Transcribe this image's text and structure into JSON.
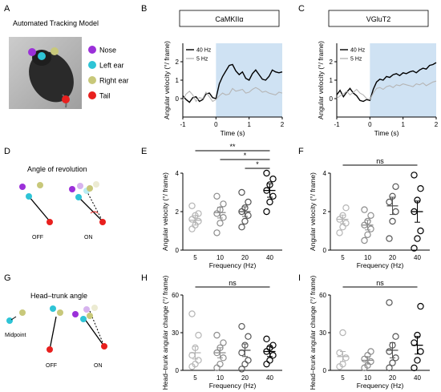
{
  "panels": {
    "A": "A",
    "B": "B",
    "C": "C",
    "D": "D",
    "E": "E",
    "F": "F",
    "G": "G",
    "H": "H",
    "I": "I"
  },
  "panelA": {
    "title": "Automated Tracking Model",
    "legend": [
      {
        "label": "Nose",
        "color": "#9b30d9"
      },
      {
        "label": "Left ear",
        "color": "#2ec4d6"
      },
      {
        "label": "Right ear",
        "color": "#c8c87a"
      },
      {
        "label": "Tail",
        "color": "#e8201e"
      }
    ]
  },
  "panelD": {
    "title": "Angle of revolution",
    "off": "OFF",
    "on": "ON"
  },
  "panelG": {
    "title": "Head–trunk angle",
    "midpoint": "Midpoint",
    "off": "OFF",
    "on": "ON"
  },
  "colors": {
    "shade": "#cfe2f3",
    "light_gray": "#b5b5b5",
    "black": "#000000"
  },
  "chart_data": [
    {
      "id": "B",
      "type": "line",
      "title": "CaMKIIα",
      "xlabel": "Time (s)",
      "ylabel": "Angular velocity (°/ frame)",
      "xlim": [
        -1,
        2
      ],
      "xticks": [
        -1,
        0,
        1,
        2
      ],
      "ylim": [
        -1,
        3
      ],
      "yticks": [
        0,
        1,
        2
      ],
      "shade": [
        0,
        2
      ],
      "legend": [
        "40 Hz",
        "5 Hz"
      ],
      "series": [
        {
          "name": "40 Hz",
          "color": "#000000",
          "x": [
            -1,
            -0.9,
            -0.8,
            -0.7,
            -0.6,
            -0.5,
            -0.4,
            -0.3,
            -0.2,
            -0.1,
            0,
            0.1,
            0.2,
            0.3,
            0.4,
            0.5,
            0.6,
            0.7,
            0.8,
            0.9,
            1.0,
            1.1,
            1.2,
            1.3,
            1.4,
            1.5,
            1.6,
            1.7,
            1.8,
            1.9,
            2.0
          ],
          "y": [
            0.15,
            -0.05,
            -0.2,
            0.05,
            0.1,
            -0.15,
            -0.05,
            0.25,
            0.3,
            0.05,
            0.0,
            0.8,
            1.2,
            1.5,
            1.8,
            1.85,
            1.5,
            1.3,
            1.45,
            1.1,
            1.0,
            1.35,
            1.55,
            1.3,
            1.05,
            1.0,
            1.2,
            1.55,
            1.45,
            1.4,
            1.45
          ]
        },
        {
          "name": "5 Hz",
          "color": "#b5b5b5",
          "x": [
            -1,
            -0.9,
            -0.8,
            -0.7,
            -0.6,
            -0.5,
            -0.4,
            -0.3,
            -0.2,
            -0.1,
            0,
            0.1,
            0.2,
            0.3,
            0.4,
            0.5,
            0.6,
            0.7,
            0.8,
            0.9,
            1.0,
            1.1,
            1.2,
            1.3,
            1.4,
            1.5,
            1.6,
            1.7,
            1.8,
            1.9,
            2.0
          ],
          "y": [
            -0.1,
            0.25,
            0.4,
            0.2,
            -0.15,
            0.05,
            0.0,
            0.35,
            0.1,
            -0.15,
            -0.05,
            0.15,
            0.3,
            0.2,
            0.25,
            0.55,
            0.4,
            0.45,
            0.5,
            0.3,
            0.35,
            0.5,
            0.6,
            0.5,
            0.35,
            0.4,
            0.3,
            0.25,
            0.2,
            0.35,
            0.3
          ]
        }
      ]
    },
    {
      "id": "C",
      "type": "line",
      "title": "VGluT2",
      "xlabel": "Time (s)",
      "ylabel": "Angular velocity (°/ frame)",
      "xlim": [
        -1,
        2
      ],
      "xticks": [
        -1,
        0,
        1,
        2
      ],
      "ylim": [
        -1,
        3
      ],
      "yticks": [
        0,
        1,
        2
      ],
      "shade": [
        0,
        2
      ],
      "legend": [
        "40 Hz",
        "5 Hz"
      ],
      "series": [
        {
          "name": "40 Hz",
          "color": "#000000",
          "x": [
            -1,
            -0.9,
            -0.8,
            -0.7,
            -0.6,
            -0.5,
            -0.4,
            -0.3,
            -0.2,
            -0.1,
            0,
            0.1,
            0.2,
            0.3,
            0.4,
            0.5,
            0.6,
            0.7,
            0.8,
            0.9,
            1.0,
            1.1,
            1.2,
            1.3,
            1.4,
            1.5,
            1.6,
            1.7,
            1.8,
            1.9,
            2.0
          ],
          "y": [
            0.2,
            0.45,
            0.1,
            0.35,
            0.55,
            0.3,
            0.15,
            -0.1,
            -0.15,
            -0.05,
            -0.1,
            0.5,
            0.9,
            1.05,
            1.0,
            1.2,
            1.15,
            1.3,
            1.35,
            1.25,
            1.4,
            1.35,
            1.45,
            1.5,
            1.4,
            1.55,
            1.65,
            1.6,
            1.8,
            1.85,
            1.95
          ]
        },
        {
          "name": "5 Hz",
          "color": "#b5b5b5",
          "x": [
            -1,
            -0.9,
            -0.8,
            -0.7,
            -0.6,
            -0.5,
            -0.4,
            -0.3,
            -0.2,
            -0.1,
            0,
            0.1,
            0.2,
            0.3,
            0.4,
            0.5,
            0.6,
            0.7,
            0.8,
            0.9,
            1.0,
            1.1,
            1.2,
            1.3,
            1.4,
            1.5,
            1.6,
            1.7,
            1.8,
            1.9,
            2.0
          ],
          "y": [
            0.0,
            0.15,
            0.25,
            0.4,
            0.2,
            0.35,
            0.5,
            0.3,
            0.2,
            0.0,
            -0.05,
            0.3,
            0.55,
            0.6,
            0.5,
            0.65,
            0.7,
            0.6,
            0.75,
            0.7,
            0.8,
            0.75,
            0.7,
            0.65,
            0.8,
            0.75,
            0.85,
            0.7,
            0.8,
            0.9,
            0.95
          ]
        }
      ]
    },
    {
      "id": "E",
      "type": "scatter",
      "xlabel": "Frequency (Hz)",
      "ylabel": "Angular velocity (°/ frame)",
      "categories": [
        "5",
        "10",
        "20",
        "40"
      ],
      "ylim": [
        0,
        4
      ],
      "yticks": [
        0,
        2,
        4
      ],
      "points": [
        [
          1.1,
          1.3,
          1.5,
          1.6,
          1.8,
          1.9,
          2.3
        ],
        [
          0.9,
          1.4,
          1.7,
          1.9,
          2.1,
          2.4,
          2.8
        ],
        [
          1.2,
          1.5,
          1.8,
          2.0,
          2.2,
          2.5,
          3.0
        ],
        [
          2.0,
          2.5,
          2.8,
          3.1,
          3.4,
          3.7,
          4.0
        ]
      ],
      "means": [
        1.55,
        1.95,
        2.0,
        3.1
      ],
      "sems": [
        0.25,
        0.28,
        0.25,
        0.35
      ],
      "colors": [
        "#b5b5b5",
        "#8c8c8c",
        "#555555",
        "#000000"
      ],
      "significance": [
        {
          "from": 0,
          "to": 3,
          "label": "**"
        },
        {
          "from": 1,
          "to": 3,
          "label": "*"
        },
        {
          "from": 2,
          "to": 3,
          "label": "*"
        }
      ]
    },
    {
      "id": "F",
      "type": "scatter",
      "xlabel": "Frequency (Hz)",
      "ylabel": "Angular velocity (°/ frame)",
      "categories": [
        "5",
        "10",
        "20",
        "40"
      ],
      "ylim": [
        0,
        4
      ],
      "yticks": [
        0,
        2,
        4
      ],
      "points": [
        [
          0.9,
          1.2,
          1.4,
          1.6,
          1.8,
          2.2
        ],
        [
          0.5,
          0.8,
          1.1,
          1.3,
          1.5,
          1.8,
          2.1
        ],
        [
          0.6,
          1.5,
          2.0,
          2.5,
          2.8,
          3.3
        ],
        [
          0.1,
          0.6,
          1.0,
          2.0,
          2.6,
          3.2,
          3.9
        ]
      ],
      "means": [
        1.6,
        1.3,
        2.3,
        2.0
      ],
      "sems": [
        0.22,
        0.25,
        0.45,
        0.55
      ],
      "colors": [
        "#b5b5b5",
        "#8c8c8c",
        "#555555",
        "#000000"
      ],
      "significance": [
        {
          "from": 0,
          "to": 3,
          "label": "ns"
        }
      ]
    },
    {
      "id": "H",
      "type": "scatter",
      "xlabel": "Frequency (Hz)",
      "ylabel": "Head–trunk angular change (°/ frame)",
      "categories": [
        "5",
        "10",
        "20",
        "40"
      ],
      "ylim": [
        0,
        60
      ],
      "yticks": [
        0,
        30,
        60
      ],
      "points": [
        [
          3,
          5,
          8,
          12,
          18,
          28,
          45
        ],
        [
          2,
          5,
          10,
          14,
          18,
          22,
          28
        ],
        [
          1,
          5,
          8,
          14,
          20,
          27,
          35
        ],
        [
          5,
          8,
          12,
          15,
          18,
          20,
          25
        ]
      ],
      "means": [
        14,
        14,
        16,
        15
      ],
      "sems": [
        5,
        4,
        5,
        4
      ],
      "colors": [
        "#b5b5b5",
        "#8c8c8c",
        "#555555",
        "#000000"
      ],
      "significance": [
        {
          "from": 0,
          "to": 3,
          "label": "ns"
        }
      ]
    },
    {
      "id": "I",
      "type": "scatter",
      "xlabel": "Frequency (Hz)",
      "ylabel": "Head–trunk angular change (°/ frame)",
      "categories": [
        "5",
        "10",
        "20",
        "40"
      ],
      "ylim": [
        0,
        60
      ],
      "yticks": [
        0,
        30,
        60
      ],
      "points": [
        [
          3,
          5,
          10,
          14,
          30
        ],
        [
          2,
          4,
          7,
          9,
          12,
          15
        ],
        [
          2,
          6,
          10,
          15,
          20,
          27,
          54
        ],
        [
          2,
          8,
          15,
          22,
          28,
          51
        ]
      ],
      "means": [
        11,
        8,
        16,
        20
      ],
      "sems": [
        4,
        3,
        6,
        7
      ],
      "colors": [
        "#b5b5b5",
        "#8c8c8c",
        "#555555",
        "#000000"
      ],
      "significance": [
        {
          "from": 0,
          "to": 3,
          "label": "ns"
        }
      ]
    }
  ]
}
